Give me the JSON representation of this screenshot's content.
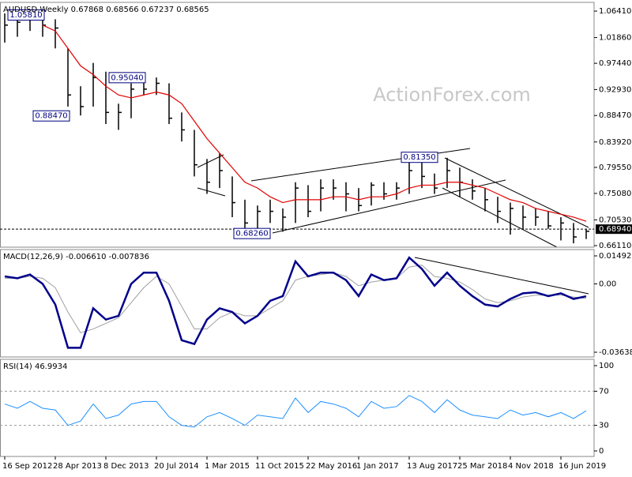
{
  "chart_data": [
    {
      "type": "ohlc",
      "title": "AUDUSD,Weekly  0.67868 0.68566 0.67237 0.68565",
      "watermark": "ActionForex.com",
      "color": "#000000",
      "high": [
        1.06,
        1.055,
        1.058,
        1.055,
        1.05,
        1.0,
        0.935,
        0.975,
        0.96,
        0.905,
        0.94,
        0.945,
        0.95,
        0.94,
        0.89,
        0.86,
        0.81,
        0.82,
        0.78,
        0.74,
        0.73,
        0.74,
        0.725,
        0.77,
        0.765,
        0.775,
        0.775,
        0.77,
        0.76,
        0.77,
        0.77,
        0.77,
        0.8135,
        0.81,
        0.785,
        0.812,
        0.795,
        0.775,
        0.76,
        0.745,
        0.735,
        0.73,
        0.725,
        0.72,
        0.71,
        0.7,
        0.69
      ],
      "low": [
        1.01,
        1.02,
        1.03,
        1.02,
        1.0,
        0.9,
        0.8847,
        0.9,
        0.87,
        0.86,
        0.88,
        0.92,
        0.92,
        0.87,
        0.84,
        0.78,
        0.75,
        0.76,
        0.71,
        0.69,
        0.6826,
        0.7,
        0.685,
        0.7,
        0.71,
        0.72,
        0.74,
        0.72,
        0.72,
        0.73,
        0.74,
        0.74,
        0.75,
        0.76,
        0.75,
        0.76,
        0.745,
        0.74,
        0.72,
        0.7,
        0.68,
        0.69,
        0.695,
        0.69,
        0.67,
        0.665,
        0.6724
      ],
      "close": [
        1.04,
        1.045,
        1.05,
        1.04,
        1.035,
        0.92,
        0.9,
        0.95,
        0.89,
        0.89,
        0.93,
        0.93,
        0.94,
        0.88,
        0.86,
        0.8,
        0.77,
        0.79,
        0.735,
        0.7,
        0.72,
        0.72,
        0.71,
        0.76,
        0.72,
        0.76,
        0.76,
        0.75,
        0.73,
        0.765,
        0.75,
        0.76,
        0.79,
        0.78,
        0.76,
        0.79,
        0.77,
        0.755,
        0.74,
        0.72,
        0.725,
        0.71,
        0.71,
        0.695,
        0.7,
        0.676,
        0.6857
      ],
      "ma": {
        "color": "#e00000",
        "values": [
          null,
          null,
          null,
          1.04,
          1.03,
          1.0,
          0.97,
          0.955,
          0.935,
          0.92,
          0.915,
          0.92,
          0.925,
          0.92,
          0.905,
          0.875,
          0.845,
          0.82,
          0.795,
          0.77,
          0.76,
          0.745,
          0.735,
          0.74,
          0.74,
          0.74,
          0.745,
          0.745,
          0.74,
          0.745,
          0.745,
          0.75,
          0.76,
          0.765,
          0.765,
          0.77,
          0.77,
          0.765,
          0.76,
          0.75,
          0.74,
          0.735,
          0.725,
          0.72,
          0.715,
          0.71,
          0.703
        ]
      },
      "ylim": [
        0.6584,
        1.0791
      ],
      "yticks": [
        {
          "value": 1.0641,
          "label": "1.06410"
        },
        {
          "value": 1.0186,
          "label": "1.01860"
        },
        {
          "value": 0.9744,
          "label": "0.97440"
        },
        {
          "value": 0.9293,
          "label": "0.92930"
        },
        {
          "value": 0.8847,
          "label": "0.88470"
        },
        {
          "value": 0.8392,
          "label": "0.83920"
        },
        {
          "value": 0.7955,
          "label": "0.79550"
        },
        {
          "value": 0.7508,
          "label": "0.75080"
        },
        {
          "value": 0.7053,
          "label": "0.70530"
        },
        {
          "value": 0.6611,
          "label": "0.66110"
        }
      ],
      "price_line": {
        "value": 0.6894,
        "label": "0.68940"
      },
      "annotations": [
        {
          "value": 1.0581,
          "label": "1.05810"
        },
        {
          "value": 0.8847,
          "label": "0.88470"
        },
        {
          "value": 0.9504,
          "label": "0.95040"
        },
        {
          "value": 0.6826,
          "label": "0.68260"
        },
        {
          "value": 0.8135,
          "label": "0.81350"
        }
      ]
    },
    {
      "type": "macd",
      "title": "MACD(12,26,9) -0.006610 -0.007836",
      "series": [
        {
          "color": "#00008b",
          "values": [
            0.004,
            0.003,
            0.005,
            0.0,
            -0.011,
            -0.034,
            -0.034,
            -0.013,
            -0.019,
            -0.017,
            0.0,
            0.006,
            0.006,
            -0.009,
            -0.03,
            -0.032,
            -0.019,
            -0.013,
            -0.015,
            -0.021,
            -0.017,
            -0.009,
            -0.0065,
            0.012,
            0.004,
            0.006,
            0.006,
            0.002,
            -0.0065,
            0.005,
            0.002,
            0.003,
            0.014,
            0.008,
            -0.001,
            0.006,
            -0.001,
            -0.0065,
            -0.011,
            -0.012,
            -0.008,
            -0.005,
            -0.0045,
            -0.0065,
            -0.005,
            -0.008,
            -0.0066
          ]
        },
        {
          "color": "#a0a0a0",
          "values": [
            0.003,
            0.003,
            0.004,
            0.003,
            -0.002,
            -0.015,
            -0.026,
            -0.024,
            -0.021,
            -0.018,
            -0.01,
            -0.002,
            0.004,
            0.0,
            -0.012,
            -0.024,
            -0.024,
            -0.018,
            -0.015,
            -0.017,
            -0.017,
            -0.013,
            -0.009,
            0.002,
            0.004,
            0.005,
            0.006,
            0.004,
            -0.001,
            0.001,
            0.002,
            0.003,
            0.009,
            0.01,
            0.004,
            0.003,
            0.001,
            -0.003,
            -0.008,
            -0.01,
            -0.009,
            -0.007,
            -0.006,
            -0.006,
            -0.006,
            -0.007,
            -0.0078
          ]
        }
      ],
      "ylim": [
        -0.03891,
        0.01829
      ],
      "yticks": [
        0.014925,
        {
          "value": 0,
          "label": "0.00"
        },
        -0.036389
      ]
    },
    {
      "type": "line",
      "title": "RSI(14) 46.9934",
      "color": "#1e90ff",
      "categories": [
        "16 Sep 2012",
        null,
        null,
        null,
        "28 Apr 2013",
        null,
        null,
        null,
        "8 Dec 2013",
        null,
        null,
        null,
        "20 Jul 2014",
        null,
        null,
        null,
        "1 Mar 2015",
        null,
        null,
        null,
        "11 Oct 2015",
        null,
        null,
        null,
        "22 May 2016",
        null,
        null,
        null,
        "1 Jan 2017",
        null,
        null,
        null,
        "13 Aug 2017",
        null,
        null,
        null,
        "25 Mar 2018",
        null,
        null,
        null,
        "4 Nov 2018",
        null,
        null,
        null,
        "16 Jun 2019",
        null,
        null
      ],
      "values": [
        55,
        50,
        58,
        50,
        48,
        30,
        35,
        55,
        38,
        42,
        55,
        58,
        58,
        40,
        30,
        28,
        40,
        45,
        38,
        30,
        42,
        40,
        38,
        62,
        45,
        58,
        55,
        50,
        40,
        58,
        50,
        52,
        65,
        58,
        45,
        60,
        48,
        42,
        40,
        38,
        48,
        42,
        45,
        40,
        45,
        38,
        47
      ],
      "ylim": [
        -6.5,
        107.4
      ],
      "yticks": [
        100,
        70,
        30,
        0
      ],
      "grid": true
    }
  ]
}
